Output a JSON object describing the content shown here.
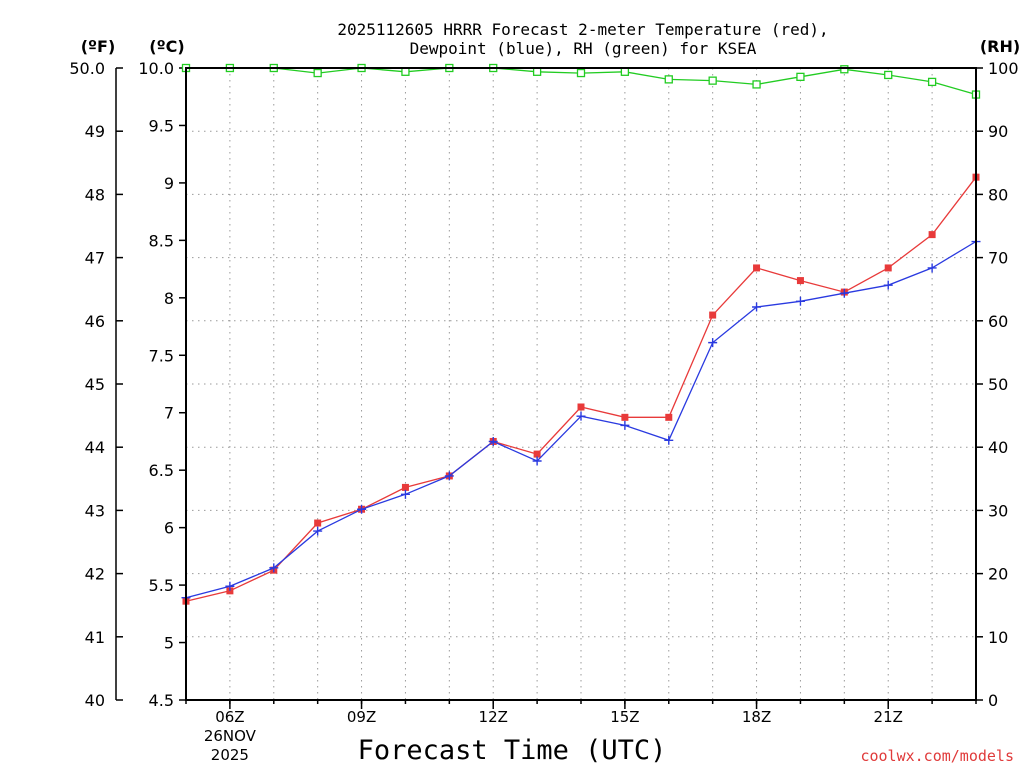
{
  "chart_data": {
    "type": "line",
    "title_line1": "2025112605 HRRR Forecast 2-meter Temperature (red),",
    "title_line2": "Dewpoint (blue), RH (green) for KSEA",
    "units": {
      "f": "(ºF)",
      "c": "(ºC)",
      "rh": "(RH)"
    },
    "xlabel": "Forecast Time (UTC)",
    "credit": "coolwx.com/models",
    "x_hours": [
      5,
      6,
      7,
      8,
      9,
      10,
      11,
      12,
      13,
      14,
      15,
      16,
      17,
      18,
      19,
      20,
      21,
      22,
      23
    ],
    "xlim": [
      5,
      23
    ],
    "x_ticks": [
      {
        "hour": 6,
        "label": "06Z",
        "date1": "26NOV",
        "date2": "2025"
      },
      {
        "hour": 9,
        "label": "09Z"
      },
      {
        "hour": 12,
        "label": "12Z"
      },
      {
        "hour": 15,
        "label": "15Z"
      },
      {
        "hour": 18,
        "label": "18Z"
      },
      {
        "hour": 21,
        "label": "21Z"
      }
    ],
    "c_axis": {
      "range": [
        4.5,
        10.0
      ],
      "ticks": [
        4.5,
        5,
        5.5,
        6,
        6.5,
        7,
        7.5,
        8,
        8.5,
        9,
        9.5,
        10
      ],
      "labels": [
        "4.5",
        "5",
        "5.5",
        "6",
        "6.5",
        "7",
        "7.5",
        "8",
        "8.5",
        "9",
        "9.5",
        "10.0"
      ]
    },
    "f_axis": {
      "range": [
        40,
        50
      ],
      "ticks": [
        40,
        41,
        42,
        43,
        44,
        45,
        46,
        47,
        48,
        49,
        50
      ],
      "labels": [
        "40",
        "41",
        "42",
        "43",
        "44",
        "45",
        "46",
        "47",
        "48",
        "49",
        "50.0"
      ]
    },
    "rh_axis": {
      "range": [
        0,
        100
      ],
      "ticks": [
        0,
        10,
        20,
        30,
        40,
        50,
        60,
        70,
        80,
        90,
        100
      ],
      "labels": [
        "0",
        "10",
        "20",
        "30",
        "40",
        "50",
        "60",
        "70",
        "80",
        "90",
        "100"
      ]
    },
    "series": [
      {
        "name": "Temperature",
        "color": "#e83a3a",
        "axis": "c",
        "marker": "square",
        "values": [
          5.36,
          5.45,
          5.63,
          6.04,
          6.16,
          6.35,
          6.45,
          6.75,
          6.64,
          7.05,
          6.96,
          6.96,
          7.85,
          8.26,
          8.15,
          8.05,
          8.26,
          8.55,
          9.05
        ]
      },
      {
        "name": "Dewpoint",
        "color": "#2a3ae0",
        "axis": "c",
        "marker": "plus",
        "values": [
          5.39,
          5.49,
          5.65,
          5.97,
          6.16,
          6.29,
          6.45,
          6.75,
          6.58,
          6.97,
          6.89,
          6.76,
          7.61,
          7.92,
          7.97,
          8.04,
          8.11,
          8.26,
          8.49
        ]
      },
      {
        "name": "RH",
        "color": "#22cc22",
        "axis": "rh",
        "marker": "open-square",
        "values": [
          100,
          100,
          100,
          99.2,
          100,
          99.4,
          100,
          100,
          99.4,
          99.2,
          99.4,
          98.2,
          98,
          97.4,
          98.6,
          99.8,
          98.9,
          97.8,
          95.8
        ]
      }
    ]
  }
}
